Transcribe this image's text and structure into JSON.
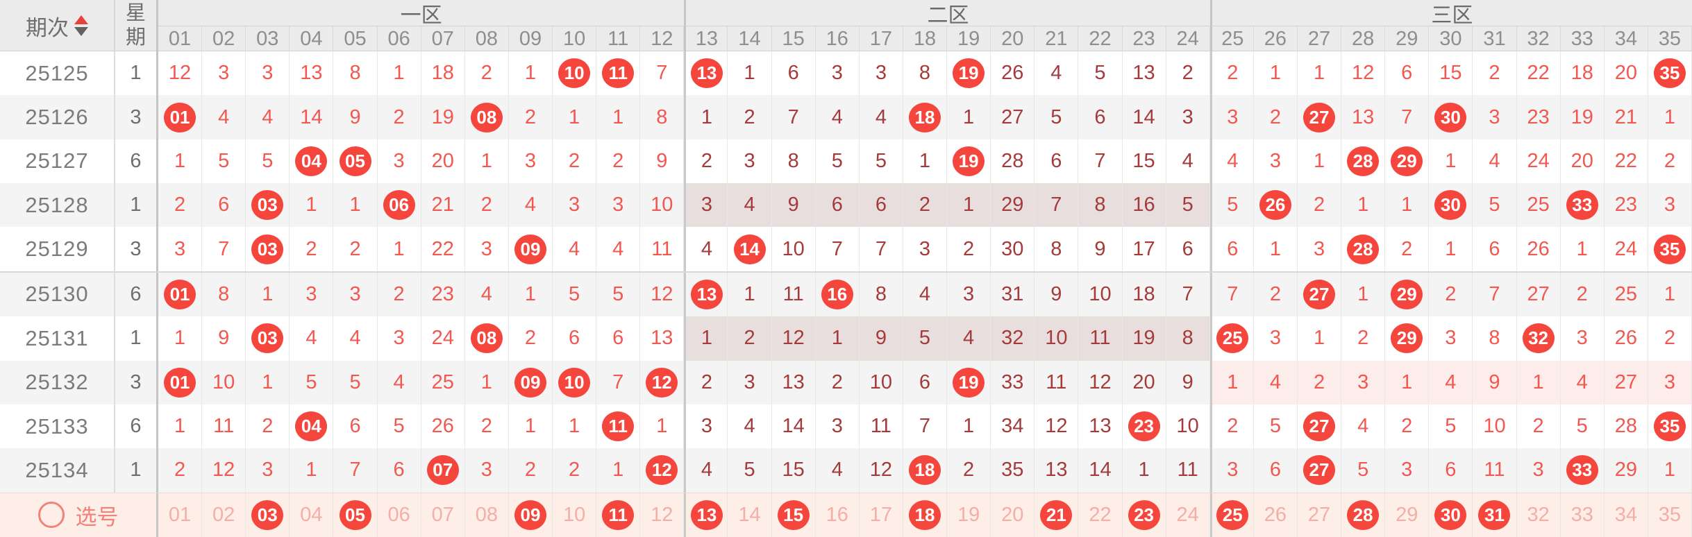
{
  "header": {
    "period": "期次",
    "week": "星期",
    "zones": [
      {
        "label": "一区",
        "cols": [
          "01",
          "02",
          "03",
          "04",
          "05",
          "06",
          "07",
          "08",
          "09",
          "10",
          "11",
          "12"
        ]
      },
      {
        "label": "二区",
        "cols": [
          "13",
          "14",
          "15",
          "16",
          "17",
          "18",
          "19",
          "20",
          "21",
          "22",
          "23",
          "24"
        ]
      },
      {
        "label": "三区",
        "cols": [
          "25",
          "26",
          "27",
          "28",
          "29",
          "30",
          "31",
          "32",
          "33",
          "34",
          "35"
        ]
      }
    ]
  },
  "ball_marker": "*",
  "rows": [
    {
      "period": "25125",
      "week": "1",
      "hl": 0,
      "cells": [
        "12",
        "3",
        "3",
        "13",
        "8",
        "1",
        "18",
        "2",
        "1",
        "*10",
        "*11",
        "7",
        "*13",
        "1",
        "6",
        "3",
        "3",
        "8",
        "*19",
        "26",
        "4",
        "5",
        "13",
        "2",
        "2",
        "1",
        "1",
        "12",
        "6",
        "15",
        "2",
        "22",
        "18",
        "20",
        "*35"
      ]
    },
    {
      "period": "25126",
      "week": "3",
      "hl": 0,
      "cells": [
        "*01",
        "4",
        "4",
        "14",
        "9",
        "2",
        "19",
        "*08",
        "2",
        "1",
        "1",
        "8",
        "1",
        "2",
        "7",
        "4",
        "4",
        "*18",
        "1",
        "27",
        "5",
        "6",
        "14",
        "3",
        "3",
        "2",
        "*27",
        "13",
        "7",
        "*30",
        "3",
        "23",
        "19",
        "21",
        "1"
      ]
    },
    {
      "period": "25127",
      "week": "6",
      "hl": 0,
      "cells": [
        "1",
        "5",
        "5",
        "*04",
        "*05",
        "3",
        "20",
        "1",
        "3",
        "2",
        "2",
        "9",
        "2",
        "3",
        "8",
        "5",
        "5",
        "1",
        "*19",
        "28",
        "6",
        "7",
        "15",
        "4",
        "4",
        "3",
        "1",
        "*28",
        "*29",
        "1",
        "4",
        "24",
        "20",
        "22",
        "2"
      ]
    },
    {
      "period": "25128",
      "week": "1",
      "hl": 2,
      "cells": [
        "2",
        "6",
        "*03",
        "1",
        "1",
        "*06",
        "21",
        "2",
        "4",
        "3",
        "3",
        "10",
        "3",
        "4",
        "9",
        "6",
        "6",
        "2",
        "1",
        "29",
        "7",
        "8",
        "16",
        "5",
        "5",
        "*26",
        "2",
        "1",
        "1",
        "*30",
        "5",
        "25",
        "*33",
        "23",
        "3"
      ]
    },
    {
      "period": "25129",
      "week": "3",
      "hl": 0,
      "cells": [
        "3",
        "7",
        "*03",
        "2",
        "2",
        "1",
        "22",
        "3",
        "*09",
        "4",
        "4",
        "11",
        "4",
        "*14",
        "10",
        "7",
        "7",
        "3",
        "2",
        "30",
        "8",
        "9",
        "17",
        "6",
        "6",
        "1",
        "3",
        "*28",
        "2",
        "1",
        "6",
        "26",
        "1",
        "24",
        "*35"
      ]
    },
    {
      "period": "25130",
      "week": "6",
      "hl": 0,
      "cells": [
        "*01",
        "8",
        "1",
        "3",
        "3",
        "2",
        "23",
        "4",
        "1",
        "5",
        "5",
        "12",
        "*13",
        "1",
        "11",
        "*16",
        "8",
        "4",
        "3",
        "31",
        "9",
        "10",
        "18",
        "7",
        "7",
        "2",
        "*27",
        "1",
        "*29",
        "2",
        "7",
        "27",
        "2",
        "25",
        "1"
      ]
    },
    {
      "period": "25131",
      "week": "1",
      "hl": 2,
      "cells": [
        "1",
        "9",
        "*03",
        "4",
        "4",
        "3",
        "24",
        "*08",
        "2",
        "6",
        "6",
        "13",
        "1",
        "2",
        "12",
        "1",
        "9",
        "5",
        "4",
        "32",
        "10",
        "11",
        "19",
        "8",
        "*25",
        "3",
        "1",
        "2",
        "*29",
        "3",
        "8",
        "*32",
        "3",
        "26",
        "2"
      ]
    },
    {
      "period": "25132",
      "week": "3",
      "hl": 3,
      "cells": [
        "*01",
        "10",
        "1",
        "5",
        "5",
        "4",
        "25",
        "1",
        "*09",
        "*10",
        "7",
        "*12",
        "2",
        "3",
        "13",
        "2",
        "10",
        "6",
        "*19",
        "33",
        "11",
        "12",
        "20",
        "9",
        "1",
        "4",
        "2",
        "3",
        "1",
        "4",
        "9",
        "1",
        "4",
        "27",
        "3"
      ]
    },
    {
      "period": "25133",
      "week": "6",
      "hl": 0,
      "cells": [
        "1",
        "11",
        "2",
        "*04",
        "6",
        "5",
        "26",
        "2",
        "1",
        "1",
        "*11",
        "1",
        "3",
        "4",
        "14",
        "3",
        "11",
        "7",
        "1",
        "34",
        "12",
        "13",
        "*23",
        "10",
        "2",
        "5",
        "*27",
        "4",
        "2",
        "5",
        "10",
        "2",
        "5",
        "28",
        "*35"
      ]
    },
    {
      "period": "25134",
      "week": "1",
      "hl": 0,
      "cells": [
        "2",
        "12",
        "3",
        "1",
        "7",
        "6",
        "*07",
        "3",
        "2",
        "2",
        "1",
        "*12",
        "4",
        "5",
        "15",
        "4",
        "12",
        "*18",
        "2",
        "35",
        "13",
        "14",
        "1",
        "11",
        "3",
        "6",
        "*27",
        "5",
        "3",
        "6",
        "11",
        "3",
        "*33",
        "29",
        "1"
      ]
    }
  ],
  "select_row": {
    "label": "选号",
    "cells": [
      "01",
      "02",
      "*03",
      "04",
      "*05",
      "06",
      "07",
      "08",
      "*09",
      "10",
      "*11",
      "12",
      "*13",
      "14",
      "*15",
      "16",
      "17",
      "*18",
      "19",
      "20",
      "*21",
      "22",
      "*23",
      "24",
      "*25",
      "26",
      "27",
      "*28",
      "29",
      "*30",
      "*31",
      "32",
      "33",
      "34",
      "35"
    ]
  },
  "colors": {
    "header_bg": "#ebebeb",
    "alt_row_bg": "#f4f4f4",
    "ball": "#f5463d",
    "zone13_text": "#f25750",
    "zone2_text": "#a43b3b",
    "highlight_zone2_bg": "#e9dede",
    "highlight_zone3_bg": "#fcecea",
    "select_row_bg": "#fdeee7",
    "select_faded_text": "#f5aea6",
    "select_label": "#f48078",
    "period_text": "#7b7b7b",
    "sort_up": "#e8413c",
    "sort_down": "#636363"
  }
}
